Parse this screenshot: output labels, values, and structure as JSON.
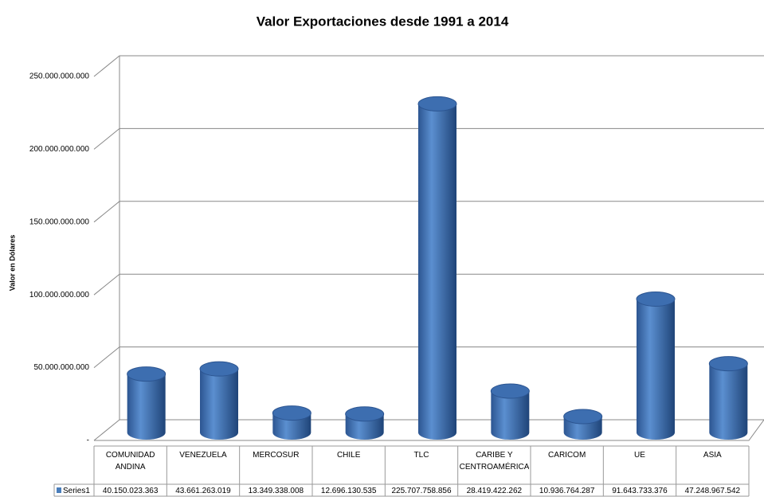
{
  "chart_data": {
    "type": "bar3d",
    "title": "Valor Exportaciones desde 1991 a 2014",
    "y_label": "Valor en Dólares",
    "categories": [
      "COMUNIDAD ANDINA",
      "VENEZUELA",
      "MERCOSUR",
      "CHILE",
      "TLC",
      "CARIBE Y CENTROAMÉRICA",
      "CARICOM",
      "UE",
      "ASIA"
    ],
    "series": [
      {
        "name": "Series1",
        "color": "#4a7ebb",
        "values": [
          40150023363,
          43661263019,
          13349338008,
          12696130535,
          225707758856,
          28419422262,
          10936764287,
          91643733376,
          47248967542
        ],
        "value_labels": [
          "40.150.023.363",
          "43.661.263.019",
          "13.349.338.008",
          "12.696.130.535",
          "225.707.758.856",
          "28.419.422.262",
          "10.936.764.287",
          "91.643.733.376",
          "47.248.967.542"
        ]
      }
    ],
    "ylim": [
      0,
      250000000000
    ],
    "yticks": [
      {
        "value": 0,
        "label": "-"
      },
      {
        "value": 50000000000,
        "label": "50.000.000.000"
      },
      {
        "value": 100000000000,
        "label": "100.000.000.000"
      },
      {
        "value": 150000000000,
        "label": "150.000.000.000"
      },
      {
        "value": 200000000000,
        "label": "200.000.000.000"
      },
      {
        "value": 250000000000,
        "label": "250.000.000.000"
      }
    ],
    "grid": true
  }
}
